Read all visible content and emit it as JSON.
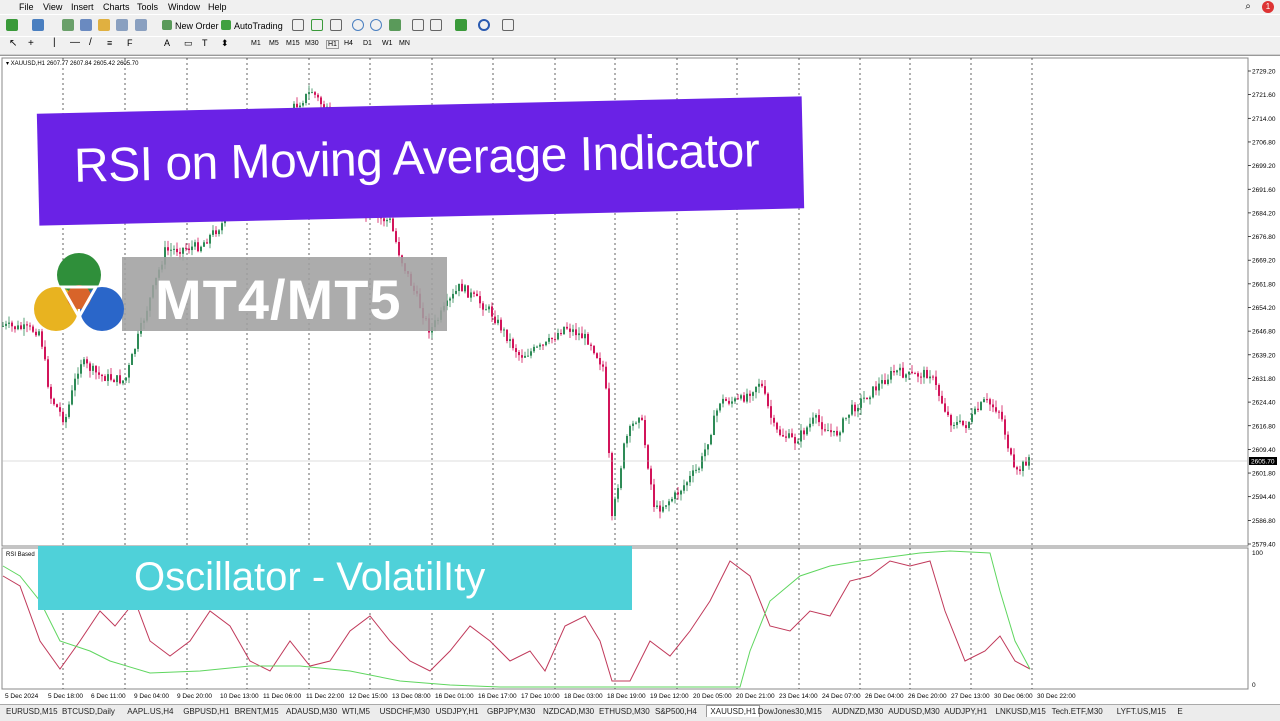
{
  "menu": {
    "items": [
      "File",
      "View",
      "Insert",
      "Charts",
      "Tools",
      "Window",
      "Help"
    ]
  },
  "toolbar": {
    "new_order": "New Order",
    "auto_trading": "AutoTrading",
    "timeframes": [
      "M1",
      "M5",
      "M15",
      "M30",
      "H1",
      "H4",
      "D1",
      "W1",
      "MN"
    ]
  },
  "chart": {
    "header": "XAUUSD,H1  2607.77 2607.84 2605.42 2605.70",
    "current_price": "2605.70",
    "price_labels": [
      "2729.20",
      "2721.60",
      "2714.00",
      "2706.80",
      "2699.20",
      "2691.60",
      "2684.20",
      "2676.80",
      "2669.20",
      "2661.80",
      "2654.20",
      "2646.80",
      "2639.20",
      "2631.80",
      "2624.40",
      "2616.80",
      "2609.40",
      "2601.80",
      "2594.40",
      "2586.80",
      "2579.40"
    ],
    "time_labels": [
      "5 Dec 2024",
      "5 Dec 18:00",
      "6 Dec 11:00",
      "9 Dec 04:00",
      "9 Dec 20:00",
      "10 Dec 13:00",
      "11 Dec 06:00",
      "11 Dec 22:00",
      "12 Dec 15:00",
      "13 Dec 08:00",
      "16 Dec 01:00",
      "16 Dec 17:00",
      "17 Dec 10:00",
      "18 Dec 03:00",
      "18 Dec 19:00",
      "19 Dec 12:00",
      "20 Dec 05:00",
      "20 Dec 21:00",
      "23 Dec 14:00",
      "24 Dec 07:00",
      "26 Dec 04:00",
      "26 Dec 20:00",
      "27 Dec 13:00",
      "30 Dec 06:00",
      "30 Dec 22:00"
    ],
    "indicator_label": "RSI Based",
    "indicator_scale": [
      "100",
      "0"
    ]
  },
  "overlays": {
    "title": "RSI on Moving Average Indicator",
    "platform": "MT4/MT5",
    "subtitle": "Oscillator - VolatilIty"
  },
  "tabs": [
    "EURUSD,M15",
    "BTCUSD,Daily",
    "AAPL.US,H4",
    "GBPUSD,H1",
    "BRENT,M15",
    "ADAUSD,M30",
    "WTI,M5",
    "USDCHF,M30",
    "USDJPY,H1",
    "GBPJPY,M30",
    "NZDCAD,M30",
    "ETHUSD,M30",
    "S&P500,H4",
    "XAUUSD,H1",
    "DowJones30,M15",
    "AUDNZD,M30",
    "AUDUSD,M30",
    "AUDJPY,H1",
    "LNKUSD,M15",
    "Tech.ETF,M30",
    "LYFT.US,M15",
    "E"
  ],
  "active_tab": "XAUUSD,H1",
  "colors": {
    "bull": "#2e8b57",
    "bear": "#d2145a",
    "rsi_line": "#c0395a",
    "ma_line": "#5fd65f",
    "title_banner": "#6a22e6",
    "osc_banner": "#4fd1d9"
  }
}
